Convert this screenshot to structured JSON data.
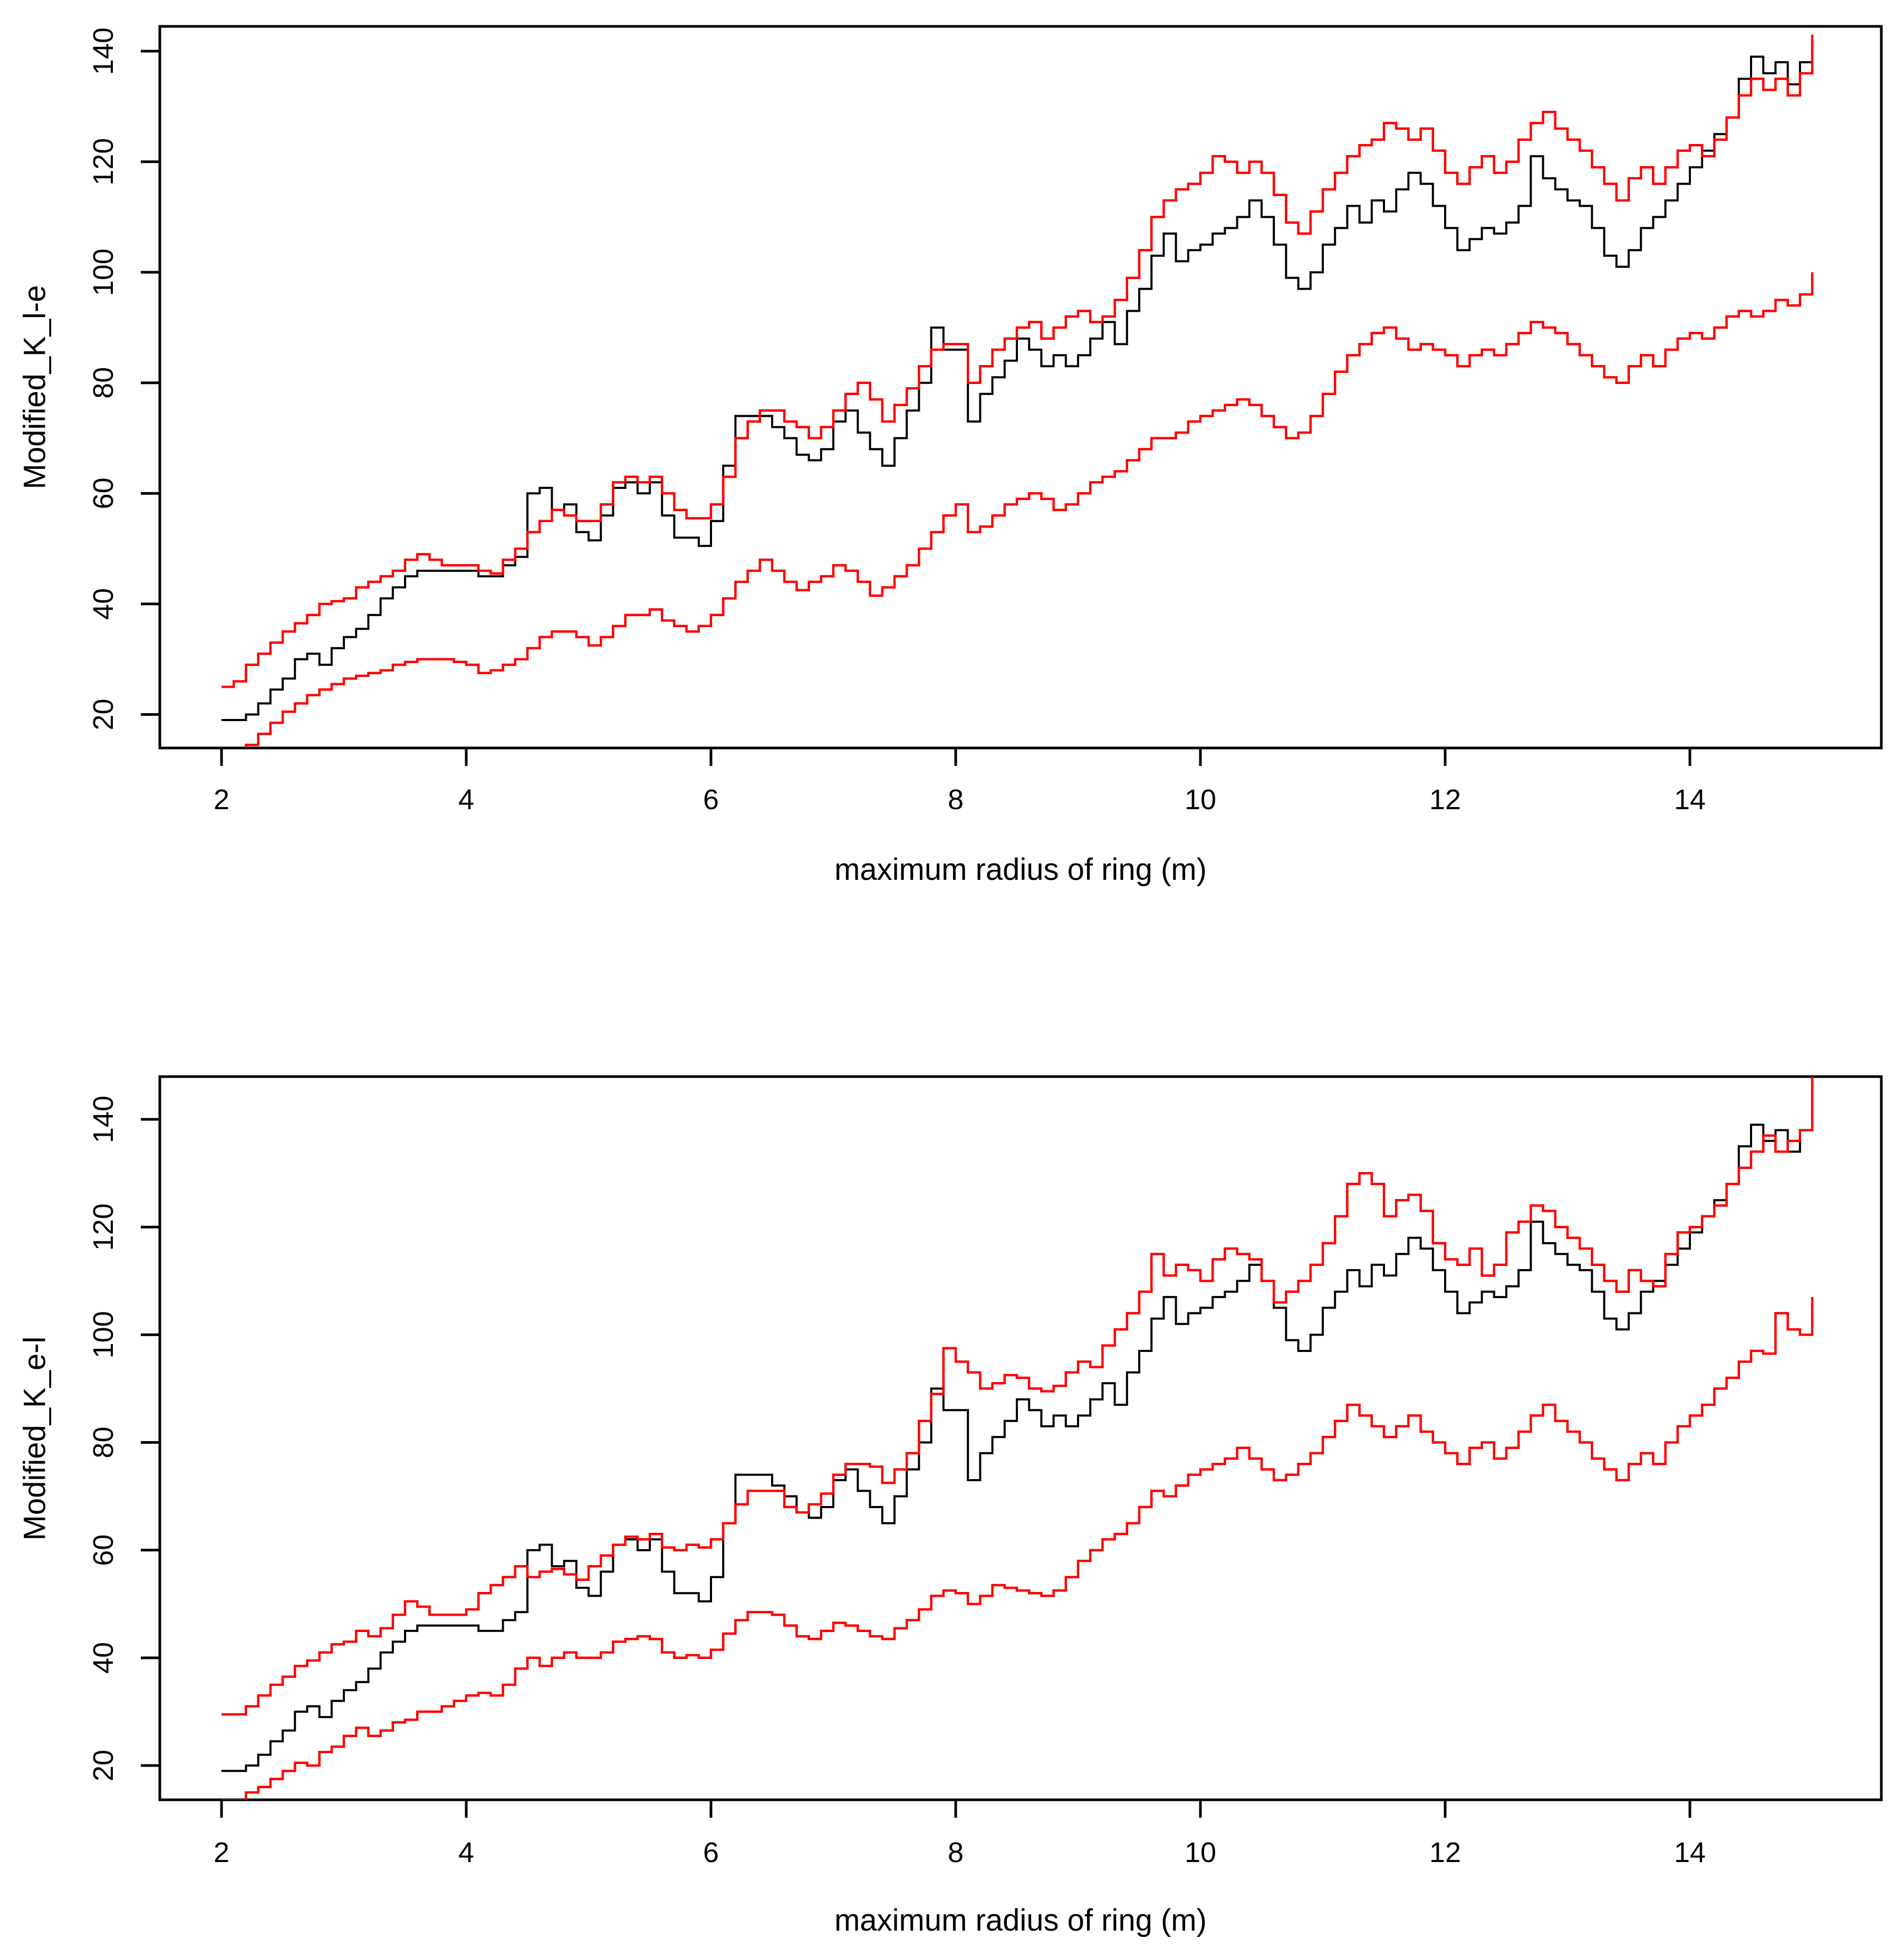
{
  "figure": {
    "background": "#ffffff",
    "observed_color": "#000000",
    "envelope_color": "#ff0000"
  },
  "chart_data": [
    {
      "type": "line",
      "panel": "top",
      "line_style": "step",
      "title": "",
      "xlabel": "maximum radius of ring (m)",
      "ylabel": "Modified_K_l-e",
      "x_start": 2.0,
      "x_step": 0.1,
      "xlim": [
        1.48,
        15.57
      ],
      "ylim": [
        14,
        144.5
      ],
      "xticks": [
        2,
        4,
        6,
        8,
        10,
        12,
        14
      ],
      "yticks": [
        20,
        40,
        60,
        80,
        100,
        120,
        140
      ],
      "grid": false,
      "legend": "none",
      "box": true,
      "series": [
        {
          "name": "observed",
          "color": "#000000",
          "values": [
            19,
            19,
            20,
            22,
            24.5,
            26.5,
            30,
            31,
            29,
            32,
            34,
            35.5,
            38,
            41,
            43,
            45,
            46,
            46,
            46,
            46,
            46,
            45,
            45,
            47,
            48.5,
            60,
            61,
            57,
            58,
            53,
            51.5,
            56,
            61,
            62,
            60,
            62,
            56,
            52,
            52,
            50.5,
            55,
            65,
            74,
            74,
            74,
            72,
            70,
            67,
            66,
            68,
            73,
            75,
            71,
            68,
            65,
            70,
            75,
            80,
            90,
            86,
            86,
            73,
            78,
            81,
            84,
            88,
            86,
            83,
            85,
            83,
            85,
            88,
            91,
            87,
            93,
            97,
            103,
            107,
            102,
            104,
            105,
            107,
            108,
            110,
            113,
            110,
            105,
            99,
            97,
            100,
            105,
            108,
            112,
            109,
            113,
            111,
            115,
            118,
            116,
            112,
            108,
            104,
            106,
            108,
            107,
            109,
            112,
            121,
            117,
            115,
            113,
            112,
            108,
            103,
            101,
            104,
            108,
            110,
            113,
            116,
            119,
            122,
            125,
            128,
            135,
            139,
            136,
            138,
            134,
            138,
            139
          ]
        },
        {
          "name": "envelope-upper",
          "color": "#ff0000",
          "values": [
            25,
            26,
            29,
            31,
            33,
            35,
            36.5,
            38,
            40,
            40.5,
            41,
            43,
            44,
            45,
            46,
            48,
            49,
            48,
            47,
            47,
            47,
            46,
            45.5,
            48,
            50,
            53,
            55,
            57,
            56,
            55,
            55,
            58,
            62,
            63,
            62,
            63,
            60,
            57,
            55.5,
            55.5,
            58,
            63,
            70,
            73,
            75,
            75,
            73,
            72,
            70,
            72,
            75,
            78,
            80,
            77,
            73,
            76,
            79,
            83,
            86,
            87,
            87,
            80,
            83,
            86,
            88,
            90,
            91,
            88,
            90,
            92,
            93,
            91,
            92,
            95,
            99,
            104,
            110,
            113,
            115,
            116,
            118,
            121,
            120,
            118,
            120,
            118,
            114,
            109,
            107,
            111,
            115,
            118,
            121,
            123,
            124,
            127,
            126,
            124,
            126,
            122,
            118,
            116,
            119,
            121,
            118,
            120,
            124,
            127,
            129,
            126,
            124,
            122,
            119,
            116,
            113,
            117,
            119,
            116,
            119,
            122,
            123,
            121,
            124,
            128,
            132,
            135,
            133,
            135,
            132,
            136,
            143
          ]
        },
        {
          "name": "envelope-lower",
          "color": "#ff0000",
          "values": [
            13,
            13.5,
            14.5,
            16.5,
            18.5,
            20.5,
            22,
            23.5,
            24.5,
            25.5,
            26.5,
            27,
            27.5,
            28,
            29,
            29.5,
            30,
            30,
            30,
            29.5,
            29,
            27.5,
            28,
            29,
            30,
            32,
            34,
            35,
            35,
            34,
            32.5,
            34,
            36,
            38,
            38,
            39,
            37,
            36,
            35,
            36,
            38,
            41,
            44,
            46,
            48,
            46,
            44,
            42.5,
            44,
            45,
            47,
            46,
            44,
            41.5,
            43,
            45,
            47,
            50,
            53,
            56,
            58,
            53,
            54,
            56,
            58,
            59,
            60,
            59,
            57,
            58,
            60,
            62,
            63,
            64,
            66,
            68,
            70,
            70,
            71,
            73,
            74,
            75,
            76,
            77,
            76,
            74,
            72,
            70,
            71,
            74,
            78,
            82,
            85,
            87,
            89,
            90,
            88,
            86,
            87,
            86,
            85,
            83,
            85,
            86,
            85,
            87,
            89,
            91,
            90,
            89,
            87,
            85,
            83,
            81,
            80,
            83,
            85,
            83,
            86,
            88,
            89,
            88,
            90,
            92,
            93,
            92,
            93,
            95,
            94,
            96,
            100
          ]
        }
      ]
    },
    {
      "type": "line",
      "panel": "bottom",
      "line_style": "step",
      "title": "",
      "xlabel": "maximum radius of ring (m)",
      "ylabel": "Modified_K_e-l",
      "x_start": 2.0,
      "x_step": 0.1,
      "xlim": [
        1.48,
        15.57
      ],
      "ylim": [
        13.6,
        148
      ],
      "xticks": [
        2,
        4,
        6,
        8,
        10,
        12,
        14
      ],
      "yticks": [
        20,
        40,
        60,
        80,
        100,
        120,
        140
      ],
      "grid": false,
      "legend": "none",
      "box": true,
      "series": [
        {
          "name": "observed",
          "color": "#000000",
          "values": [
            19,
            19,
            20,
            22,
            24.5,
            26.5,
            30,
            31,
            29,
            32,
            34,
            35.5,
            38,
            41,
            43,
            45,
            46,
            46,
            46,
            46,
            46,
            45,
            45,
            47,
            48.5,
            60,
            61,
            57,
            58,
            53,
            51.5,
            56,
            61,
            62,
            60,
            62,
            56,
            52,
            52,
            50.5,
            55,
            65,
            74,
            74,
            74,
            72,
            70,
            67,
            66,
            68,
            73,
            75,
            71,
            68,
            65,
            70,
            75,
            80,
            90,
            86,
            86,
            73,
            78,
            81,
            84,
            88,
            86,
            83,
            85,
            83,
            85,
            88,
            91,
            87,
            93,
            97,
            103,
            107,
            102,
            104,
            105,
            107,
            108,
            110,
            113,
            110,
            105,
            99,
            97,
            100,
            105,
            108,
            112,
            109,
            113,
            111,
            115,
            118,
            116,
            112,
            108,
            104,
            106,
            108,
            107,
            109,
            112,
            121,
            117,
            115,
            113,
            112,
            108,
            103,
            101,
            104,
            108,
            110,
            113,
            116,
            119,
            122,
            125,
            128,
            135,
            139,
            136,
            138,
            134,
            138,
            139
          ]
        },
        {
          "name": "envelope-upper",
          "color": "#ff0000",
          "values": [
            29.5,
            29.5,
            31,
            33,
            35,
            36.5,
            38.5,
            39.5,
            41,
            42.5,
            43,
            45,
            44,
            45.5,
            48,
            50.5,
            49.5,
            48,
            48,
            48,
            49,
            52,
            53.5,
            55,
            57,
            55,
            56,
            56.5,
            55.5,
            54.5,
            57,
            59,
            61,
            62.5,
            62,
            63,
            60.5,
            60,
            61,
            60.5,
            62,
            65,
            68.5,
            71,
            71,
            71,
            68,
            67,
            68.5,
            70.5,
            74,
            76,
            76,
            75.5,
            72.5,
            75,
            78,
            84,
            89,
            97.5,
            95,
            93,
            90,
            91,
            92.5,
            92,
            90,
            89.5,
            90.5,
            93,
            95,
            94,
            98,
            101,
            104,
            108,
            115,
            111,
            113,
            112,
            110,
            114,
            116,
            115,
            114,
            110,
            106,
            108,
            110,
            113,
            117,
            122,
            128,
            130,
            128,
            122,
            125,
            126,
            123,
            117,
            114,
            113,
            116,
            111,
            113,
            119,
            121,
            124,
            123,
            120,
            118,
            116,
            113,
            110,
            108,
            112,
            110,
            109,
            115,
            119,
            120,
            122,
            124,
            128,
            131,
            134,
            137,
            134,
            136,
            138,
            148
          ]
        },
        {
          "name": "envelope-lower",
          "color": "#ff0000",
          "values": [
            13.5,
            13.5,
            15,
            16,
            17.5,
            19,
            20.5,
            20,
            22.5,
            23.5,
            25.5,
            27,
            25.5,
            26.5,
            28,
            28.5,
            30,
            30,
            31,
            32,
            33,
            33.5,
            33,
            35,
            38,
            40,
            38.5,
            40,
            41,
            40,
            40,
            41,
            43,
            43.5,
            44,
            43.5,
            41,
            40,
            40.5,
            40,
            41.5,
            44.5,
            47,
            48.5,
            48.5,
            48,
            46,
            44,
            43.5,
            45,
            46.5,
            46,
            45,
            44,
            43.5,
            45.5,
            47,
            49,
            51.5,
            52.5,
            52,
            50,
            51.5,
            53.5,
            53,
            52.5,
            52,
            51.5,
            52.5,
            55,
            58,
            60,
            62,
            63,
            65,
            68,
            71,
            70,
            72,
            74,
            75,
            76,
            77,
            79,
            77,
            75,
            73,
            74,
            76,
            78,
            81,
            84,
            87,
            85,
            83,
            81,
            83,
            85,
            82,
            80,
            78,
            76,
            79,
            80,
            77,
            79,
            82,
            85,
            87,
            84,
            82,
            80,
            77,
            75,
            73,
            76,
            78,
            76,
            80,
            83,
            85,
            87,
            90,
            92,
            95,
            97,
            96.5,
            104,
            101,
            100,
            107
          ]
        }
      ]
    }
  ]
}
